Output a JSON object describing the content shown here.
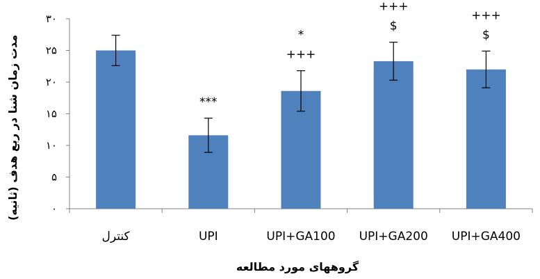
{
  "chart_data": {
    "type": "bar",
    "xlabel": "گروههای مورد مطالعه",
    "ylabel": "مدت زمان شنا در ربع هدف (ثانیه)",
    "ylim": [
      0,
      30
    ],
    "yticks": [
      0,
      5,
      10,
      15,
      20,
      25,
      30
    ],
    "ytick_labels": [
      "۰",
      "۵",
      "۱۰",
      "۱۵",
      "۲۰",
      "۲۵",
      "۳۰"
    ],
    "categories": [
      "کنترل",
      "UPI",
      "UPI+GA100",
      "UPI+GA200",
      "UPI+GA400"
    ],
    "values": [
      25.0,
      11.6,
      18.6,
      23.3,
      22.0
    ],
    "error": [
      2.4,
      2.7,
      3.2,
      3.0,
      2.9
    ],
    "annotations": [
      [],
      [
        "***"
      ],
      [
        "*",
        "+++"
      ],
      [
        "+++",
        "$"
      ],
      [
        "+++",
        "$"
      ]
    ],
    "bar_color": "#4f81bd",
    "grid": false,
    "legend": "none"
  }
}
